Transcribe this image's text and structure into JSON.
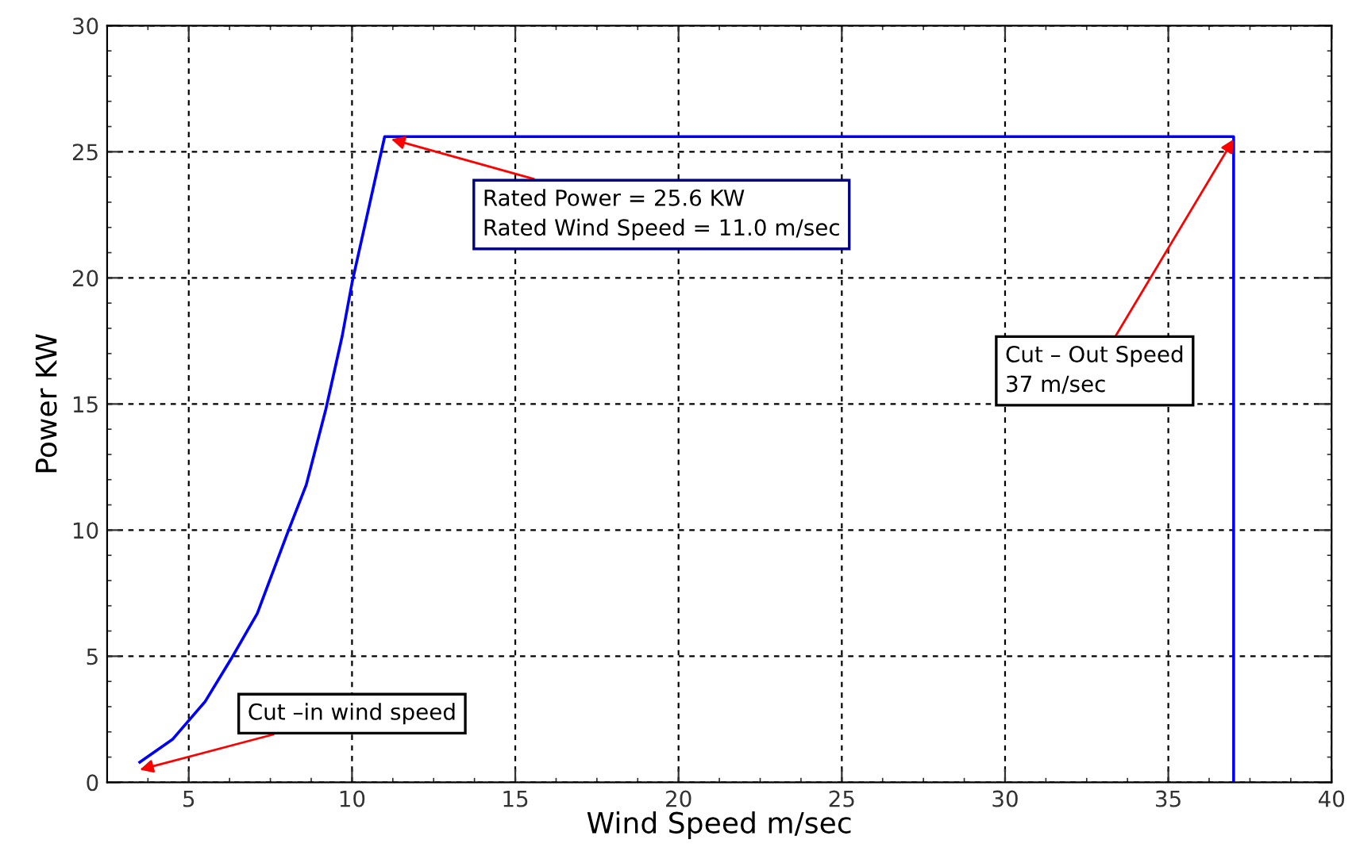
{
  "chart_data": {
    "type": "line",
    "xlabel": "Wind Speed m/sec",
    "ylabel": "Power KW",
    "series": [
      {
        "color": "#0000ff",
        "x": [
          3.5,
          4.5,
          5.5,
          6.3,
          7.1,
          8.0,
          8.6,
          9.2,
          9.7,
          10.0,
          11.0,
          37.0,
          37.0
        ],
        "values": [
          0.8,
          1.7,
          3.2,
          4.9,
          6.7,
          9.8,
          11.8,
          14.8,
          17.7,
          19.8,
          25.6,
          25.6,
          0
        ]
      }
    ],
    "xlim": [
      2.5,
      40
    ],
    "ylim": [
      0,
      30
    ],
    "xticks": [
      5,
      10,
      15,
      20,
      25,
      30,
      35,
      40
    ],
    "yticks": [
      0,
      5,
      10,
      15,
      20,
      25,
      30
    ],
    "grid": true,
    "line_style": "solid",
    "marker": "none",
    "annotations": [
      {
        "text": "Cut –in wind speed",
        "x": 3.5,
        "y": 0.5
      },
      {
        "text": "Rated Power = 25.6 KW\nRated Wind Speed = 11.0 m/sec",
        "x": 11.2,
        "y": 25.5
      },
      {
        "text": "Cut – Out Speed\n37 m/sec",
        "x": 37.0,
        "y": 25.5
      }
    ]
  }
}
